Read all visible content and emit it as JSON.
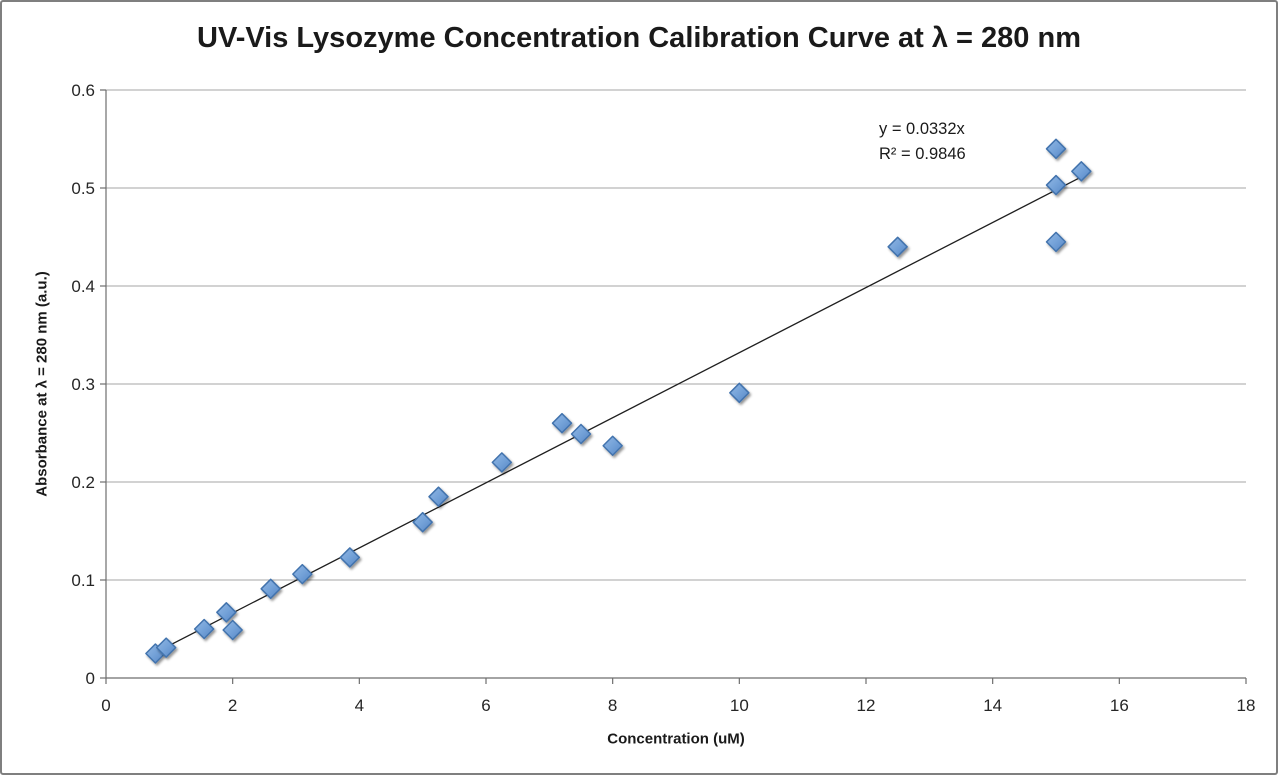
{
  "chart_data": {
    "type": "scatter",
    "title": "UV-Vis Lysozyme Concentration Calibration Curve at λ = 280 nm",
    "xlabel": "Concentration (uM)",
    "ylabel": "Absorbance at λ = 280 nm (a.u.)",
    "xlim": [
      0,
      18
    ],
    "ylim": [
      0,
      0.6
    ],
    "x_ticks": [
      0,
      2,
      4,
      6,
      8,
      10,
      12,
      14,
      16,
      18
    ],
    "y_ticks": [
      0,
      0.1,
      0.2,
      0.3,
      0.4,
      0.5,
      0.6
    ],
    "grid": "horizontal",
    "legend": "none",
    "points": {
      "x": [
        0.78,
        0.95,
        1.55,
        1.9,
        2.0,
        2.6,
        3.1,
        3.85,
        5.0,
        5.25,
        6.25,
        7.2,
        7.5,
        8.0,
        10.0,
        12.5,
        15.0,
        15.0,
        15.4,
        15.0
      ],
      "y": [
        0.025,
        0.031,
        0.05,
        0.067,
        0.049,
        0.091,
        0.106,
        0.123,
        0.159,
        0.185,
        0.22,
        0.26,
        0.249,
        0.237,
        0.291,
        0.44,
        0.54,
        0.503,
        0.517,
        0.445
      ]
    },
    "trendline": {
      "equation": "y = 0.0332x",
      "r2": "R² = 0.9846",
      "slope": 0.0332,
      "intercept": 0,
      "x_start": 0.7,
      "x_end": 15.45
    },
    "marker": {
      "shape": "diamond",
      "fill_light": "#92b7e4",
      "fill_mid": "#74a2d8",
      "fill_dark": "#5585c5",
      "stroke": "#4273ad"
    },
    "colors": {
      "gridline": "#a6a6a6",
      "axis_line": "#6e6e6e",
      "tick": "#6e6e6e",
      "tick_label": "#262626",
      "trendline": "#1f1f1f",
      "frame_border": "#7f7f7f"
    }
  }
}
